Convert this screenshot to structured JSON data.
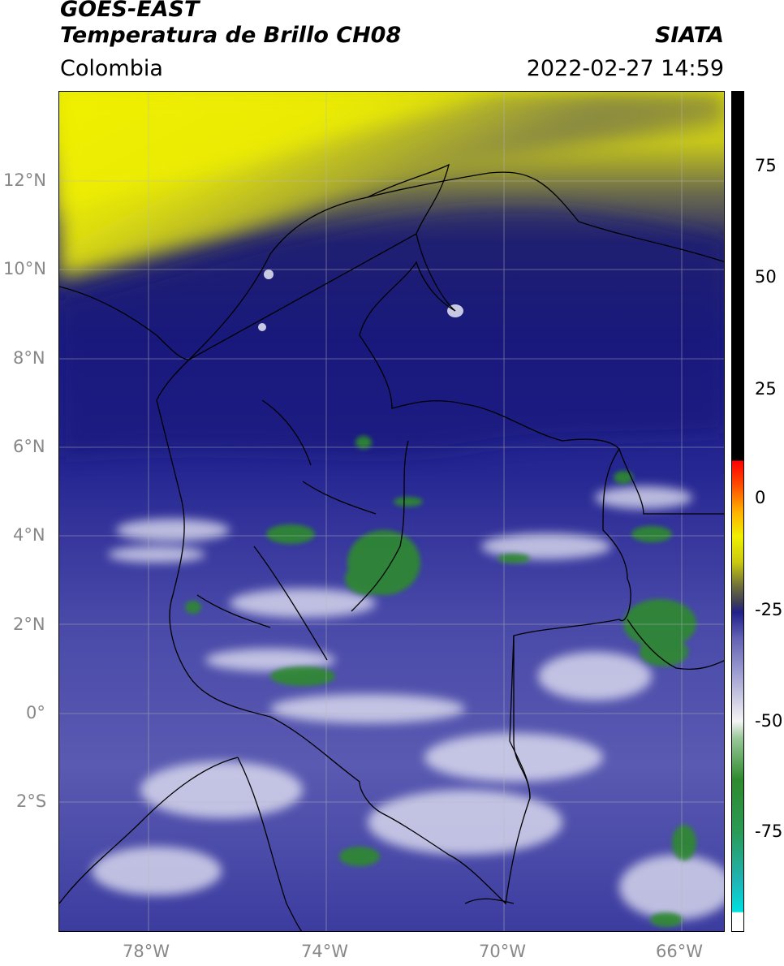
{
  "header": {
    "satellite": "GOES-EAST",
    "product": "Temperatura de Brillo CH08",
    "organization": "SIATA",
    "region": "Colombia",
    "datetime": "2022-02-27 14:59"
  },
  "map": {
    "lon_ticks": [
      "78°W",
      "74°W",
      "70°W",
      "66°W"
    ],
    "lat_ticks": [
      "12°N",
      "10°N",
      "8°N",
      "6°N",
      "4°N",
      "2°N",
      "0°",
      "2°S"
    ],
    "lon_range": [
      -80,
      -65
    ],
    "lat_range": [
      -5,
      14
    ]
  },
  "colorbar": {
    "ticks": [
      "75",
      "50",
      "25",
      "0",
      "-25",
      "-50",
      "-75"
    ],
    "range": [
      -95,
      90
    ],
    "colors": {
      "cold_end": "#ffffff",
      "cyan": "#00d8d8",
      "green": "#2e8a2e",
      "white_mid": "#f4f4f4",
      "lavender": "#8a8ac8",
      "navy": "#1a1a80",
      "gray": "#4a4a4a",
      "yellow": "#f0f000",
      "orange": "#ff8800",
      "red": "#ff0000",
      "black": "#000000"
    }
  }
}
